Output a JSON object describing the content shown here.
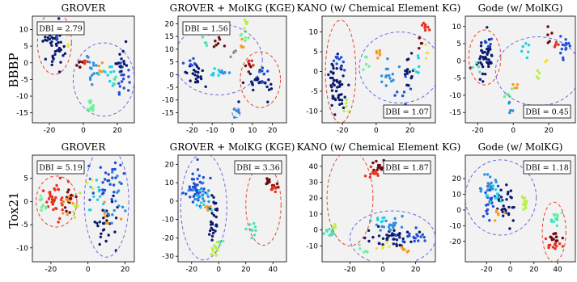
{
  "figure": {
    "row_labels": [
      "BBBP",
      "Tox21"
    ],
    "cluster_colors": {
      "navy": "#0b1a6e",
      "royal": "#1f4fd8",
      "azure": "#2e8fe0",
      "cyan": "#19d3e6",
      "aqua": "#4be3b5",
      "mint": "#6ef29a",
      "lime": "#b8f040",
      "yellow": "#f2e43a",
      "orange": "#f59a20",
      "red": "#e8301e",
      "maroon": "#6e0b12",
      "gray": "#8a8f99"
    },
    "ellipse_colors": {
      "red": "#e8432c",
      "blue": "#6a6be0"
    },
    "panel_background": "#f2f2f2"
  },
  "chart_data": [
    {
      "type": "scatter",
      "row": 0,
      "title": "GROVER",
      "dbi": "DBI = 2.79",
      "xlim": [
        -30,
        30
      ],
      "ylim": [
        -18,
        14
      ],
      "xticks": [
        -20,
        0,
        20
      ],
      "yticks": [
        -15,
        -10,
        -5,
        0,
        5,
        10
      ],
      "clusters": [
        {
          "color": "navy",
          "cx": -17,
          "cy": 6,
          "sx": 3,
          "sy": 3.5,
          "n": 48
        },
        {
          "color": "royal",
          "cx": -16,
          "cy": 9,
          "sx": 2,
          "sy": 1.5,
          "n": 8
        },
        {
          "color": "lime",
          "cx": -25,
          "cy": 10,
          "sx": 1,
          "sy": 1,
          "n": 4
        },
        {
          "color": "yellow",
          "cx": -10,
          "cy": 6,
          "sx": 1,
          "sy": 1,
          "n": 3
        },
        {
          "color": "maroon",
          "cx": -2,
          "cy": 0,
          "sx": 1.2,
          "sy": 1,
          "n": 7
        },
        {
          "color": "red",
          "cx": 1,
          "cy": 0,
          "sx": 0.8,
          "sy": 0.8,
          "n": 4
        },
        {
          "color": "royal",
          "cx": 22,
          "cy": -6,
          "sx": 2,
          "sy": 3,
          "n": 18
        },
        {
          "color": "navy",
          "cx": 22,
          "cy": 1,
          "sx": 1.8,
          "sy": 2,
          "n": 14
        },
        {
          "color": "azure",
          "cx": 5,
          "cy": -3,
          "sx": 1.8,
          "sy": 2.5,
          "n": 14
        },
        {
          "color": "cyan",
          "cx": 13,
          "cy": -2,
          "sx": 3,
          "sy": 2,
          "n": 10
        },
        {
          "color": "mint",
          "cx": 4,
          "cy": -13,
          "sx": 1.5,
          "sy": 1.2,
          "n": 12
        },
        {
          "color": "orange",
          "cx": 10,
          "cy": -1,
          "sx": 1,
          "sy": 1,
          "n": 5
        },
        {
          "color": "aqua",
          "cx": 18,
          "cy": -5,
          "sx": 1,
          "sy": 1,
          "n": 5
        }
      ],
      "ellipses": [
        {
          "color": "red",
          "cx": -17,
          "cy": 6,
          "rx": 10,
          "ry": 9.5
        },
        {
          "color": "blue",
          "cx": 12,
          "cy": -5,
          "rx": 18,
          "ry": 11
        }
      ]
    },
    {
      "type": "scatter",
      "row": 0,
      "title": "GROVER + MolKG (KGE)",
      "dbi": "DBI = 1.56",
      "xlim": [
        -27,
        27
      ],
      "ylim": [
        -19,
        23
      ],
      "xticks": [
        -20,
        -10,
        0,
        10,
        20
      ],
      "yticks": [
        -15,
        -10,
        -5,
        0,
        5,
        10,
        15,
        20
      ],
      "clusters": [
        {
          "color": "navy",
          "cx": -19,
          "cy": 0,
          "sx": 2.5,
          "sy": 3,
          "n": 22
        },
        {
          "color": "royal",
          "cx": -20,
          "cy": 4,
          "sx": 2,
          "sy": 1.2,
          "n": 6
        },
        {
          "color": "aqua",
          "cx": -14,
          "cy": 13,
          "sx": 1.5,
          "sy": 1.2,
          "n": 5
        },
        {
          "color": "cyan",
          "cx": -8,
          "cy": 1,
          "sx": 2,
          "sy": 1,
          "n": 7
        },
        {
          "color": "azure",
          "cx": -4,
          "cy": 1,
          "sx": 1.5,
          "sy": 1,
          "n": 6
        },
        {
          "color": "maroon",
          "cx": -7,
          "cy": 12,
          "sx": 1.2,
          "sy": 1.2,
          "n": 7
        },
        {
          "color": "gray",
          "cx": 0,
          "cy": 9,
          "sx": 1,
          "sy": 1,
          "n": 4
        },
        {
          "color": "lime",
          "cx": 6,
          "cy": 20,
          "sx": 1,
          "sy": 1,
          "n": 5
        },
        {
          "color": "mint",
          "cx": 6,
          "cy": 14,
          "sx": 1.5,
          "sy": 1.2,
          "n": 6
        },
        {
          "color": "orange",
          "cx": 5,
          "cy": 11,
          "sx": 1,
          "sy": 1,
          "n": 4
        },
        {
          "color": "navy",
          "cx": 13,
          "cy": -4,
          "sx": 3,
          "sy": 2.5,
          "n": 28
        },
        {
          "color": "royal",
          "cx": 15,
          "cy": 0,
          "sx": 2,
          "sy": 1.5,
          "n": 8
        },
        {
          "color": "red",
          "cx": 9,
          "cy": 5,
          "sx": 1,
          "sy": 1,
          "n": 5
        },
        {
          "color": "maroon",
          "cx": 8,
          "cy": 2,
          "sx": 1,
          "sy": 1,
          "n": 4
        },
        {
          "color": "azure",
          "cx": 2,
          "cy": -15,
          "sx": 0.8,
          "sy": 0.8,
          "n": 7
        }
      ],
      "ellipses": [
        {
          "color": "blue",
          "cx": -7,
          "cy": 6,
          "rx": 22,
          "ry": 14
        },
        {
          "color": "red",
          "cx": 14,
          "cy": -2,
          "rx": 10,
          "ry": 11
        },
        {
          "color": "blue",
          "cx": 2,
          "cy": -15,
          "rx": 2,
          "ry": 2
        }
      ]
    },
    {
      "type": "scatter",
      "row": 0,
      "title": "KANO (w/ Chemical Element KG)",
      "dbi": "DBI = 1.07",
      "xlim": [
        -32,
        35
      ],
      "ylim": [
        -13,
        14
      ],
      "xticks": [
        -20,
        0,
        20
      ],
      "yticks": [
        -10,
        -5,
        0,
        5,
        10
      ],
      "clusters": [
        {
          "color": "navy",
          "cx": -23,
          "cy": -3,
          "sx": 3,
          "sy": 4,
          "n": 50
        },
        {
          "color": "royal",
          "cx": -22,
          "cy": 3,
          "sx": 2,
          "sy": 1.5,
          "n": 10
        },
        {
          "color": "lime",
          "cx": -18,
          "cy": -9,
          "sx": 1.2,
          "sy": 1,
          "n": 5
        },
        {
          "color": "orange",
          "cx": 2,
          "cy": 4,
          "sx": 1.5,
          "sy": 1,
          "n": 6
        },
        {
          "color": "azure",
          "cx": 6,
          "cy": -1,
          "sx": 2.5,
          "sy": 2,
          "n": 14
        },
        {
          "color": "royal",
          "cx": 16,
          "cy": -5,
          "sx": 2,
          "sy": 1.5,
          "n": 8
        },
        {
          "color": "navy",
          "cx": 20,
          "cy": 0,
          "sx": 2,
          "sy": 2,
          "n": 14
        },
        {
          "color": "red",
          "cx": 28,
          "cy": 11,
          "sx": 1.5,
          "sy": 1,
          "n": 8
        },
        {
          "color": "maroon",
          "cx": 26,
          "cy": 8,
          "sx": 1.2,
          "sy": 1,
          "n": 5
        },
        {
          "color": "yellow",
          "cx": 30,
          "cy": 5,
          "sx": 1,
          "sy": 1,
          "n": 4
        },
        {
          "color": "mint",
          "cx": -5,
          "cy": 3,
          "sx": 1.2,
          "sy": 1,
          "n": 5
        },
        {
          "color": "cyan",
          "cx": 25,
          "cy": 3,
          "sx": 1.5,
          "sy": 2,
          "n": 6
        }
      ],
      "ellipses": [
        {
          "color": "red",
          "cx": -21,
          "cy": 0,
          "rx": 9,
          "ry": 13
        },
        {
          "color": "blue",
          "cx": 14,
          "cy": 1,
          "rx": 24,
          "ry": 9
        }
      ]
    },
    {
      "type": "scatter",
      "row": 0,
      "title": "Gode (w/ MolKG)",
      "dbi": "DBI = 0.45",
      "xlim": [
        -27,
        35
      ],
      "ylim": [
        -18,
        13
      ],
      "xticks": [
        -20,
        0,
        20
      ],
      "yticks": [
        -15,
        -10,
        -5,
        0,
        5,
        10
      ],
      "clusters": [
        {
          "color": "navy",
          "cx": -16,
          "cy": 1,
          "sx": 3,
          "sy": 3,
          "n": 45
        },
        {
          "color": "royal",
          "cx": -14,
          "cy": 5,
          "sx": 1.5,
          "sy": 1,
          "n": 6
        },
        {
          "color": "aqua",
          "cx": -21,
          "cy": -2,
          "sx": 1,
          "sy": 1,
          "n": 4
        },
        {
          "color": "mint",
          "cx": -3,
          "cy": -10,
          "sx": 1.2,
          "sy": 1,
          "n": 5
        },
        {
          "color": "azure",
          "cx": -2,
          "cy": -14,
          "sx": 1,
          "sy": 1,
          "n": 5
        },
        {
          "color": "orange",
          "cx": 2,
          "cy": -7,
          "sx": 1,
          "sy": 1,
          "n": 4
        },
        {
          "color": "cyan",
          "cx": 8,
          "cy": 2,
          "sx": 1.5,
          "sy": 1.5,
          "n": 6
        },
        {
          "color": "maroon",
          "cx": 20,
          "cy": 7,
          "sx": 1.2,
          "sy": 1,
          "n": 5
        },
        {
          "color": "red",
          "cx": 23,
          "cy": 5,
          "sx": 1,
          "sy": 1,
          "n": 4
        },
        {
          "color": "royal",
          "cx": 30,
          "cy": 5,
          "sx": 2,
          "sy": 2,
          "n": 14
        },
        {
          "color": "lime",
          "cx": 14,
          "cy": -3,
          "sx": 1,
          "sy": 1,
          "n": 4
        },
        {
          "color": "yellow",
          "cx": 18,
          "cy": 1,
          "sx": 1,
          "sy": 1,
          "n": 3
        }
      ],
      "ellipses": [
        {
          "color": "red",
          "cx": -16,
          "cy": 1,
          "rx": 9,
          "ry": 8
        },
        {
          "color": "blue",
          "cx": 14,
          "cy": -3,
          "rx": 24,
          "ry": 10
        }
      ]
    },
    {
      "type": "scatter",
      "row": 1,
      "title": "GROVER",
      "dbi": "DBI = 5.19",
      "xlim": [
        -30,
        25
      ],
      "ylim": [
        -13,
        10
      ],
      "xticks": [
        -20,
        0,
        20
      ],
      "yticks": [
        -10,
        -5,
        0,
        5
      ],
      "clusters": [
        {
          "color": "red",
          "cx": -18,
          "cy": 0,
          "sx": 3.5,
          "sy": 2,
          "n": 40
        },
        {
          "color": "maroon",
          "cx": -10,
          "cy": 1,
          "sx": 2,
          "sy": 1.5,
          "n": 14
        },
        {
          "color": "orange",
          "cx": -12,
          "cy": -1,
          "sx": 2,
          "sy": 1.5,
          "n": 8
        },
        {
          "color": "mint",
          "cx": -25,
          "cy": 0,
          "sx": 1.5,
          "sy": 1.5,
          "n": 8
        },
        {
          "color": "lime",
          "cx": -6,
          "cy": -1,
          "sx": 1.5,
          "sy": 1.5,
          "n": 6
        },
        {
          "color": "royal",
          "cx": 10,
          "cy": 4,
          "sx": 4,
          "sy": 3,
          "n": 30
        },
        {
          "color": "navy",
          "cx": 10,
          "cy": -5,
          "sx": 3,
          "sy": 3.5,
          "n": 28
        },
        {
          "color": "azure",
          "cx": 14,
          "cy": 0,
          "sx": 3,
          "sy": 3,
          "n": 14
        },
        {
          "color": "cyan",
          "cx": 5,
          "cy": 0,
          "sx": 3,
          "sy": 2,
          "n": 10
        },
        {
          "color": "orange",
          "cx": 10,
          "cy": -3,
          "sx": 2,
          "sy": 1.5,
          "n": 6
        },
        {
          "color": "yellow",
          "cx": 0,
          "cy": 4,
          "sx": 1.5,
          "sy": 1,
          "n": 4
        }
      ],
      "ellipses": [
        {
          "color": "red",
          "cx": -17,
          "cy": 0,
          "rx": 11,
          "ry": 5.5
        },
        {
          "color": "blue",
          "cx": 10,
          "cy": 0,
          "rx": 12,
          "ry": 12
        }
      ]
    },
    {
      "type": "scatter",
      "row": 1,
      "title": "GROVER + MolKG (KGE)",
      "dbi": "DBI = 3.36",
      "xlim": [
        -30,
        50
      ],
      "ylim": [
        -33,
        25
      ],
      "xticks": [
        -20,
        0,
        20,
        40
      ],
      "yticks": [
        -30,
        -20,
        -10,
        0,
        10,
        20
      ],
      "clusters": [
        {
          "color": "royal",
          "cx": -17,
          "cy": 8,
          "sx": 5,
          "sy": 5,
          "n": 40
        },
        {
          "color": "azure",
          "cx": -13,
          "cy": 4,
          "sx": 4,
          "sy": 4,
          "n": 18
        },
        {
          "color": "navy",
          "cx": -3,
          "cy": -8,
          "sx": 2.5,
          "sy": 6,
          "n": 28
        },
        {
          "color": "cyan",
          "cx": -12,
          "cy": 0,
          "sx": 3,
          "sy": 3,
          "n": 8
        },
        {
          "color": "lime",
          "cx": -2,
          "cy": -27,
          "sx": 1.5,
          "sy": 2.5,
          "n": 10
        },
        {
          "color": "maroon",
          "cx": 38,
          "cy": 10,
          "sx": 3,
          "sy": 2,
          "n": 14
        },
        {
          "color": "red",
          "cx": 40,
          "cy": 6,
          "sx": 3,
          "sy": 1.5,
          "n": 8
        },
        {
          "color": "aqua",
          "cx": 24,
          "cy": -16,
          "sx": 2.5,
          "sy": 2,
          "n": 10
        },
        {
          "color": "orange",
          "cx": -8,
          "cy": -4,
          "sx": 1.5,
          "sy": 1.5,
          "n": 5
        },
        {
          "color": "mint",
          "cx": 1,
          "cy": -22,
          "sx": 1,
          "sy": 1,
          "n": 4
        }
      ],
      "ellipses": [
        {
          "color": "blue",
          "cx": -11,
          "cy": -3,
          "rx": 17,
          "ry": 29
        },
        {
          "color": "red",
          "cx": 33,
          "cy": -2,
          "rx": 13,
          "ry": 22
        }
      ]
    },
    {
      "type": "scatter",
      "row": 1,
      "title": "KANO (w/ Chemical Element KG)",
      "dbi": "DBI = 1.87",
      "xlim": [
        -37,
        32
      ],
      "ylim": [
        -20,
        47
      ],
      "xticks": [
        -20,
        0,
        20
      ],
      "yticks": [
        -10,
        0,
        10,
        20,
        30,
        40
      ],
      "clusters": [
        {
          "color": "aqua",
          "cx": -31,
          "cy": -2,
          "sx": 2,
          "sy": 1.5,
          "n": 12
        },
        {
          "color": "maroon",
          "cx": -2,
          "cy": 40,
          "sx": 3,
          "sy": 2,
          "n": 14
        },
        {
          "color": "red",
          "cx": -6,
          "cy": 36,
          "sx": 3,
          "sy": 2,
          "n": 10
        },
        {
          "color": "navy",
          "cx": 4,
          "cy": -5,
          "sx": 8,
          "sy": 3,
          "n": 40
        },
        {
          "color": "royal",
          "cx": 18,
          "cy": -4,
          "sx": 4,
          "sy": 3,
          "n": 16
        },
        {
          "color": "azure",
          "cx": 6,
          "cy": 3,
          "sx": 5,
          "sy": 3,
          "n": 18
        },
        {
          "color": "cyan",
          "cx": -2,
          "cy": 6,
          "sx": 3,
          "sy": 2,
          "n": 8
        },
        {
          "color": "yellow",
          "cx": 0,
          "cy": -10,
          "sx": 2,
          "sy": 1.5,
          "n": 5
        },
        {
          "color": "orange",
          "cx": 14,
          "cy": -12,
          "sx": 2,
          "sy": 1.5,
          "n": 6
        },
        {
          "color": "mint",
          "cx": -12,
          "cy": -12,
          "sx": 1.5,
          "sy": 1.5,
          "n": 5
        },
        {
          "color": "lime",
          "cx": -30,
          "cy": 2,
          "sx": 1,
          "sy": 1,
          "n": 3
        }
      ],
      "ellipses": [
        {
          "color": "red",
          "cx": -20,
          "cy": 20,
          "rx": 14,
          "ry": 30
        },
        {
          "color": "blue",
          "cx": 6,
          "cy": -5,
          "rx": 26,
          "ry": 17
        }
      ]
    },
    {
      "type": "scatter",
      "row": 1,
      "title": "Gode (w/ MolKG)",
      "dbi": "DBI = 1.18",
      "xlim": [
        -38,
        55
      ],
      "ylim": [
        -33,
        35
      ],
      "xticks": [
        -20,
        0,
        20,
        40
      ],
      "yticks": [
        -20,
        -10,
        0,
        10,
        20
      ],
      "clusters": [
        {
          "color": "navy",
          "cx": -5,
          "cy": 3,
          "sx": 4,
          "sy": 6,
          "n": 28
        },
        {
          "color": "royal",
          "cx": -17,
          "cy": 6,
          "sx": 4,
          "sy": 5,
          "n": 26
        },
        {
          "color": "azure",
          "cx": -18,
          "cy": 15,
          "sx": 4,
          "sy": 4,
          "n": 16
        },
        {
          "color": "cyan",
          "cx": -12,
          "cy": 10,
          "sx": 3,
          "sy": 3,
          "n": 10
        },
        {
          "color": "orange",
          "cx": -10,
          "cy": -2,
          "sx": 2,
          "sy": 2,
          "n": 6
        },
        {
          "color": "lime",
          "cx": 12,
          "cy": 5,
          "sx": 1.5,
          "sy": 3,
          "n": 10
        },
        {
          "color": "aqua",
          "cx": 37,
          "cy": -6,
          "sx": 2,
          "sy": 2,
          "n": 10
        },
        {
          "color": "maroon",
          "cx": 38,
          "cy": -17,
          "sx": 3,
          "sy": 2,
          "n": 12
        },
        {
          "color": "red",
          "cx": 36,
          "cy": -22,
          "sx": 3,
          "sy": 2,
          "n": 12
        },
        {
          "color": "mint",
          "cx": 40,
          "cy": -3,
          "sx": 1.5,
          "sy": 1.5,
          "n": 5
        }
      ],
      "ellipses": [
        {
          "color": "blue",
          "cx": -8,
          "cy": 8,
          "rx": 30,
          "ry": 24
        },
        {
          "color": "red",
          "cx": 37,
          "cy": -14,
          "rx": 10,
          "ry": 19
        }
      ]
    }
  ]
}
